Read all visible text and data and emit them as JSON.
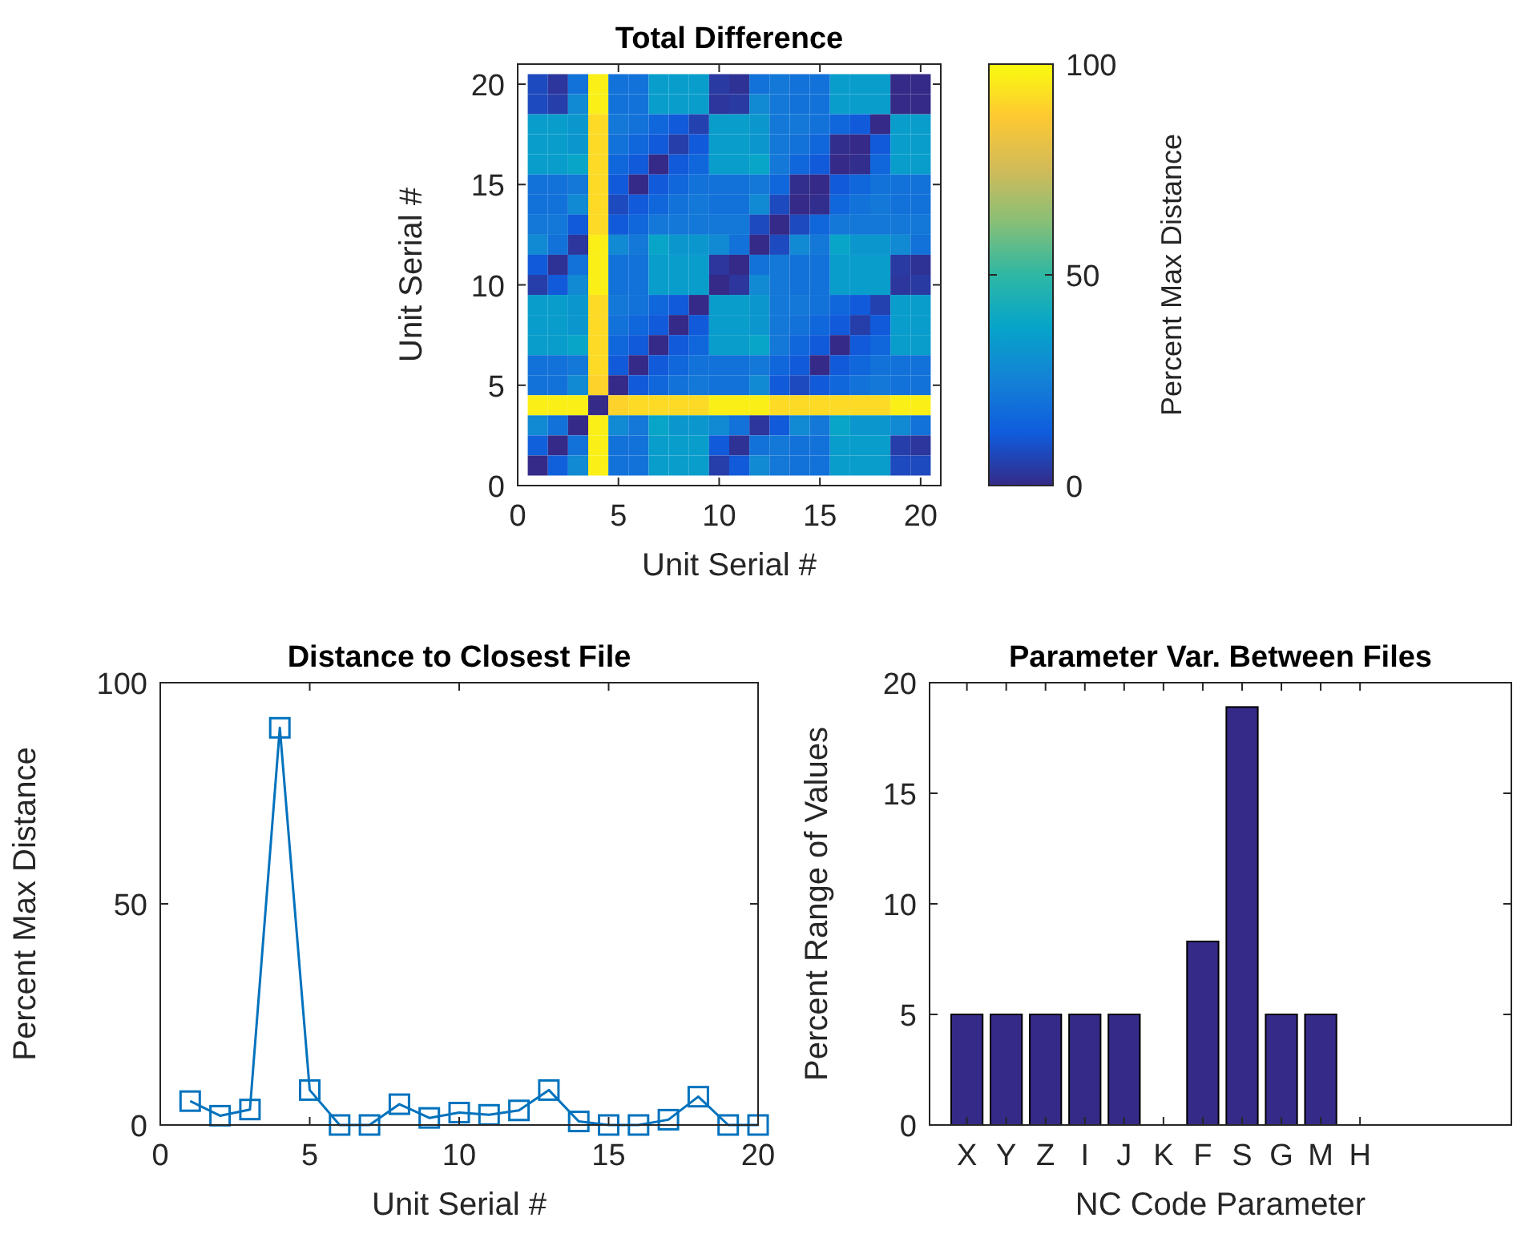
{
  "chart_data": [
    {
      "type": "heatmap",
      "title": "Total Difference",
      "xlabel": "Unit Serial #",
      "ylabel": "Unit Serial #",
      "clabel": "Percent Max Distance",
      "x": [
        1,
        2,
        3,
        4,
        5,
        6,
        7,
        8,
        9,
        10,
        11,
        12,
        13,
        14,
        15,
        16,
        17,
        18,
        19,
        20
      ],
      "y": [
        20,
        19,
        18,
        17,
        16,
        15,
        14,
        13,
        12,
        11,
        10,
        9,
        8,
        7,
        6,
        5,
        4,
        3,
        2,
        1
      ],
      "xlim": [
        0,
        21
      ],
      "ylim": [
        0,
        21
      ],
      "xticks": [
        0,
        5,
        10,
        15,
        20
      ],
      "yticks": [
        0,
        5,
        10,
        15,
        20
      ],
      "clim": [
        0,
        100
      ],
      "cticks": [
        0,
        50,
        100
      ],
      "cells": [
        [
          8,
          3,
          20,
          97,
          20,
          20,
          35,
          35,
          35,
          4,
          2,
          20,
          22,
          20,
          20,
          35,
          35,
          35,
          0,
          0
        ],
        [
          8,
          5,
          28,
          97,
          20,
          20,
          35,
          35,
          35,
          3,
          4,
          28,
          22,
          20,
          20,
          35,
          35,
          35,
          0,
          0
        ],
        [
          35,
          35,
          33,
          92,
          22,
          20,
          16,
          12,
          6,
          35,
          35,
          33,
          22,
          22,
          20,
          16,
          12,
          0,
          35,
          35
        ],
        [
          35,
          35,
          33,
          92,
          20,
          16,
          12,
          5,
          12,
          35,
          35,
          33,
          22,
          20,
          16,
          1,
          0,
          12,
          35,
          35
        ],
        [
          35,
          35,
          38,
          92,
          16,
          12,
          0,
          12,
          16,
          35,
          35,
          38,
          22,
          16,
          12,
          0,
          1,
          16,
          35,
          35
        ],
        [
          20,
          20,
          22,
          92,
          12,
          0,
          12,
          16,
          20,
          20,
          20,
          22,
          16,
          1,
          0,
          12,
          16,
          20,
          20,
          20
        ],
        [
          20,
          20,
          28,
          92,
          8,
          12,
          16,
          20,
          22,
          20,
          20,
          28,
          8,
          0,
          1,
          16,
          20,
          22,
          20,
          20
        ],
        [
          22,
          22,
          12,
          92,
          12,
          16,
          22,
          22,
          22,
          22,
          22,
          8,
          0,
          8,
          16,
          22,
          22,
          22,
          22,
          22
        ],
        [
          28,
          20,
          3,
          97,
          28,
          22,
          38,
          33,
          33,
          28,
          20,
          0,
          8,
          28,
          22,
          38,
          33,
          33,
          28,
          20
        ],
        [
          12,
          2,
          20,
          97,
          20,
          20,
          35,
          35,
          35,
          3,
          0,
          20,
          22,
          20,
          20,
          35,
          35,
          35,
          4,
          2
        ],
        [
          5,
          12,
          28,
          97,
          20,
          20,
          35,
          35,
          35,
          0,
          3,
          28,
          22,
          20,
          20,
          35,
          35,
          35,
          3,
          4
        ],
        [
          35,
          35,
          33,
          92,
          22,
          20,
          16,
          12,
          0,
          35,
          35,
          33,
          22,
          22,
          20,
          16,
          12,
          6,
          35,
          35
        ],
        [
          35,
          35,
          33,
          92,
          20,
          16,
          12,
          0,
          12,
          35,
          35,
          33,
          22,
          20,
          16,
          12,
          5,
          12,
          35,
          35
        ],
        [
          35,
          35,
          38,
          92,
          16,
          12,
          0,
          12,
          16,
          35,
          35,
          38,
          22,
          16,
          12,
          0,
          12,
          16,
          35,
          35
        ],
        [
          20,
          20,
          22,
          92,
          12,
          0,
          12,
          16,
          20,
          20,
          20,
          22,
          16,
          12,
          0,
          12,
          16,
          20,
          20,
          20
        ],
        [
          20,
          20,
          28,
          90,
          0,
          12,
          16,
          20,
          22,
          20,
          20,
          28,
          12,
          8,
          12,
          16,
          20,
          22,
          20,
          20
        ],
        [
          97,
          97,
          97,
          0,
          90,
          92,
          92,
          92,
          92,
          97,
          97,
          97,
          92,
          92,
          92,
          92,
          92,
          92,
          97,
          97
        ],
        [
          28,
          20,
          0,
          97,
          28,
          22,
          38,
          33,
          33,
          28,
          20,
          3,
          12,
          28,
          22,
          38,
          33,
          33,
          28,
          20
        ],
        [
          14,
          0,
          20,
          97,
          20,
          20,
          35,
          35,
          35,
          12,
          2,
          20,
          22,
          20,
          20,
          35,
          35,
          35,
          5,
          3
        ],
        [
          0,
          14,
          28,
          97,
          20,
          20,
          35,
          35,
          35,
          5,
          12,
          28,
          22,
          20,
          20,
          35,
          35,
          35,
          8,
          8
        ]
      ]
    },
    {
      "type": "line",
      "title": "Distance to Closest File",
      "xlabel": "Unit Serial #",
      "ylabel": "Percent Max Distance",
      "x": [
        1,
        2,
        3,
        4,
        5,
        6,
        7,
        8,
        9,
        10,
        11,
        12,
        13,
        14,
        15,
        16,
        17,
        18,
        19,
        20
      ],
      "xlim": [
        0,
        20
      ],
      "ylim": [
        0,
        100
      ],
      "xticks": [
        0,
        5,
        10,
        15,
        20
      ],
      "yticks": [
        0,
        50,
        100
      ],
      "marker": "square",
      "series": [
        {
          "color": "#0072bd",
          "values": [
            5.4,
            2.1,
            3.5,
            89.8,
            7.9,
            0,
            0,
            4.7,
            1.6,
            2.8,
            2.3,
            3.3,
            7.9,
            0.8,
            0,
            0,
            1.2,
            6.4,
            0,
            0
          ]
        }
      ]
    },
    {
      "type": "bar",
      "title": "Parameter Var. Between Files",
      "xlabel": "NC Code Parameter",
      "ylabel": "Percent Range of Values",
      "categories": [
        "X",
        "Y",
        "Z",
        "I",
        "J",
        "K",
        "F",
        "S",
        "G",
        "M",
        "H"
      ],
      "ylim": [
        0,
        20
      ],
      "yticks": [
        0,
        5,
        10,
        15,
        20
      ],
      "series": [
        {
          "color": "#352a87",
          "values": [
            5,
            5,
            5,
            5,
            5,
            0,
            8.3,
            18.9,
            5,
            5,
            0
          ]
        }
      ]
    }
  ]
}
